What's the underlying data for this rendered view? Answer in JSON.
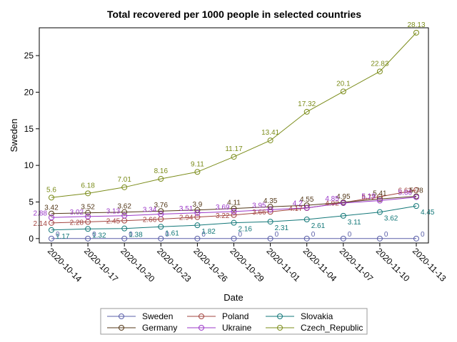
{
  "chart_data": {
    "type": "line",
    "title": "Total recovered per 1000 people in selected countries",
    "xlabel": "Date",
    "ylabel": "Sweden",
    "ylim": [
      -0.6,
      28.8
    ],
    "yticks": [
      0,
      5,
      10,
      15,
      20,
      25
    ],
    "x": [
      "2020-10-14",
      "2020-10-17",
      "2020-10-20",
      "2020-10-23",
      "2020-10-26",
      "2020-10-29",
      "2020-11-01",
      "2020-11-04",
      "2020-11-07",
      "2020-11-10",
      "2020-11-13"
    ],
    "grid": false,
    "legend_position": "bottom",
    "series": [
      {
        "name": "Sweden",
        "color": "#5a5fa8",
        "values": [
          0,
          0,
          0,
          0,
          0,
          0,
          0,
          0,
          0,
          0,
          0
        ]
      },
      {
        "name": "Poland",
        "color": "#a2443f",
        "values": [
          2.14,
          2.28,
          2.45,
          2.66,
          2.94,
          3.22,
          3.66,
          4.17,
          4.92,
          5.72,
          6.63
        ]
      },
      {
        "name": "Slovakia",
        "color": "#127778",
        "values": [
          1.17,
          1.32,
          1.38,
          1.61,
          1.82,
          2.16,
          2.31,
          2.61,
          3.11,
          3.62,
          4.45
        ]
      },
      {
        "name": "Germany",
        "color": "#54391a",
        "values": [
          3.42,
          3.52,
          3.62,
          3.76,
          3.9,
          4.11,
          4.35,
          4.55,
          4.95,
          5.41,
          5.78
        ]
      },
      {
        "name": "Ukraine",
        "color": "#9b38c8",
        "values": [
          2.88,
          3.02,
          3.13,
          3.34,
          3.51,
          3.69,
          3.95,
          4.2,
          4.85,
          5.19,
          5.66
        ]
      },
      {
        "name": "Czech_Republic",
        "color": "#7b8c1a",
        "values": [
          5.6,
          6.18,
          7.01,
          8.16,
          9.11,
          11.17,
          13.41,
          17.32,
          20.1,
          22.83,
          28.13
        ]
      }
    ]
  }
}
